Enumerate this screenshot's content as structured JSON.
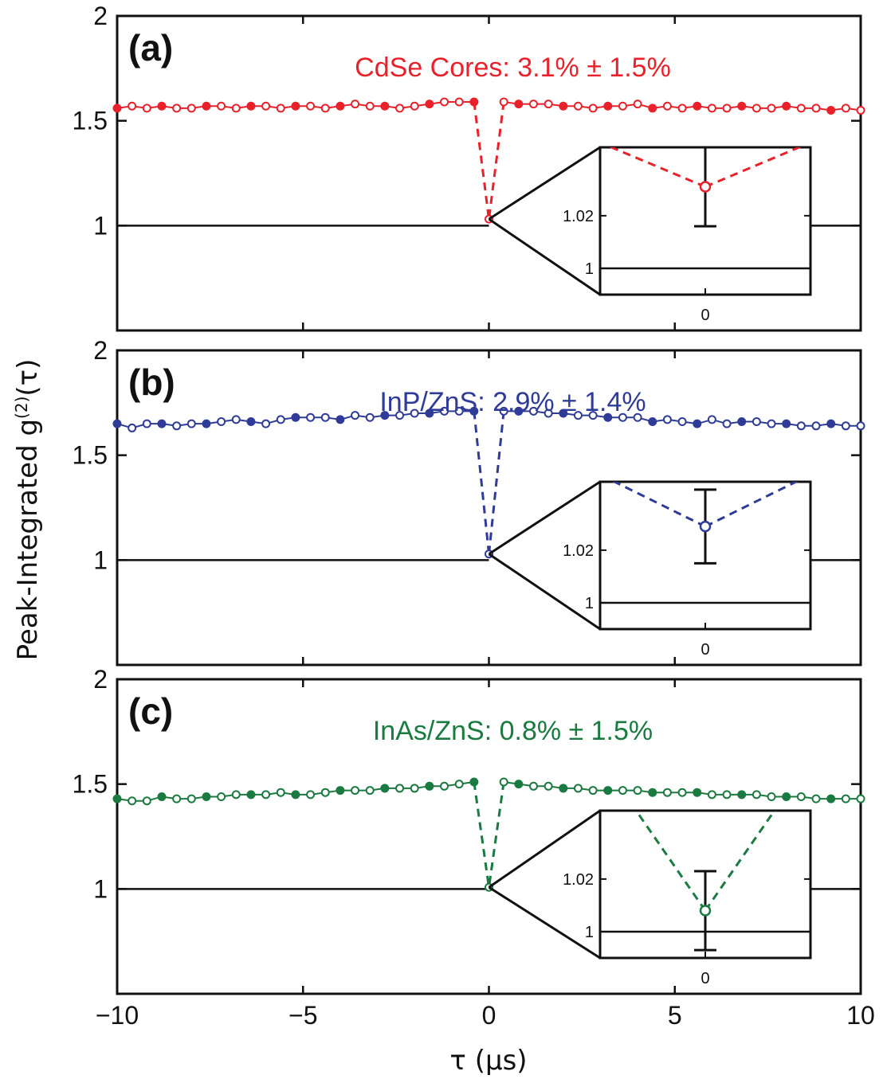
{
  "figure": {
    "ylabel_prefix": "Peak-Integrated g",
    "ylabel_sup": "(2)",
    "ylabel_suffix": "(τ)",
    "xlabel": "τ (μs)"
  },
  "chart_data": [
    {
      "type": "scatter",
      "panel_label": "(a)",
      "annotation": "CdSe Cores:  3.1% ± 1.5%",
      "color": "#e8212b",
      "xlim": [
        -10,
        10
      ],
      "ylim": [
        0.5,
        2
      ],
      "yticks": [
        "1",
        "1.5",
        "2"
      ],
      "xticks": [
        "−10",
        "−5",
        "0",
        "5",
        "10"
      ],
      "x": [
        -10,
        -9.6,
        -9.2,
        -8.8,
        -8.4,
        -8.0,
        -7.6,
        -7.2,
        -6.8,
        -6.4,
        -6.0,
        -5.6,
        -5.2,
        -4.8,
        -4.4,
        -4.0,
        -3.6,
        -3.2,
        -2.8,
        -2.4,
        -2.0,
        -1.6,
        -1.2,
        -0.8,
        -0.4,
        0,
        0.4,
        0.8,
        1.2,
        1.6,
        2.0,
        2.4,
        2.8,
        3.2,
        3.6,
        4.0,
        4.4,
        4.8,
        5.2,
        5.6,
        6.0,
        6.4,
        6.8,
        7.2,
        7.6,
        8.0,
        8.4,
        8.8,
        9.2,
        9.6,
        10
      ],
      "y": [
        1.56,
        1.57,
        1.56,
        1.57,
        1.56,
        1.56,
        1.57,
        1.57,
        1.56,
        1.57,
        1.57,
        1.56,
        1.57,
        1.57,
        1.56,
        1.57,
        1.58,
        1.57,
        1.57,
        1.56,
        1.57,
        1.58,
        1.59,
        1.59,
        1.59,
        1.031,
        1.59,
        1.58,
        1.58,
        1.58,
        1.57,
        1.57,
        1.56,
        1.57,
        1.57,
        1.58,
        1.56,
        1.57,
        1.56,
        1.57,
        1.56,
        1.56,
        1.57,
        1.56,
        1.56,
        1.57,
        1.56,
        1.56,
        1.55,
        1.56,
        1.55
      ],
      "inset": {
        "yticks": [
          "1",
          "1.02"
        ],
        "xtick": "0",
        "ylim": [
          0.99,
          1.046
        ],
        "value": 1.031,
        "err": 0.015
      }
    },
    {
      "type": "scatter",
      "panel_label": "(b)",
      "annotation": "InP/ZnS:  2.9% ± 1.4%",
      "color": "#2f3c97",
      "xlim": [
        -10,
        10
      ],
      "ylim": [
        0.5,
        2
      ],
      "yticks": [
        "1",
        "1.5",
        "2"
      ],
      "xticks": [
        "−10",
        "−5",
        "0",
        "5",
        "10"
      ],
      "x": [
        -10,
        -9.6,
        -9.2,
        -8.8,
        -8.4,
        -8.0,
        -7.6,
        -7.2,
        -6.8,
        -6.4,
        -6.0,
        -5.6,
        -5.2,
        -4.8,
        -4.4,
        -4.0,
        -3.6,
        -3.2,
        -2.8,
        -2.4,
        -2.0,
        -1.6,
        -1.2,
        -0.8,
        -0.4,
        0,
        0.4,
        0.8,
        1.2,
        1.6,
        2.0,
        2.4,
        2.8,
        3.2,
        3.6,
        4.0,
        4.4,
        4.8,
        5.2,
        5.6,
        6.0,
        6.4,
        6.8,
        7.2,
        7.6,
        8.0,
        8.4,
        8.8,
        9.2,
        9.6,
        10
      ],
      "y": [
        1.65,
        1.63,
        1.65,
        1.65,
        1.64,
        1.65,
        1.65,
        1.66,
        1.67,
        1.66,
        1.65,
        1.67,
        1.68,
        1.68,
        1.68,
        1.67,
        1.69,
        1.68,
        1.69,
        1.69,
        1.7,
        1.7,
        1.71,
        1.71,
        1.71,
        1.029,
        1.71,
        1.71,
        1.71,
        1.7,
        1.7,
        1.69,
        1.69,
        1.68,
        1.68,
        1.68,
        1.66,
        1.67,
        1.66,
        1.65,
        1.67,
        1.65,
        1.66,
        1.66,
        1.65,
        1.65,
        1.64,
        1.64,
        1.65,
        1.64,
        1.64
      ],
      "inset": {
        "yticks": [
          "1",
          "1.02"
        ],
        "xtick": "0",
        "ylim": [
          0.99,
          1.046
        ],
        "value": 1.029,
        "err": 0.014
      }
    },
    {
      "type": "scatter",
      "panel_label": "(c)",
      "annotation": "InAs/ZnS:  0.8% ± 1.5%",
      "color": "#1a7a40",
      "xlim": [
        -10,
        10
      ],
      "ylim": [
        0.5,
        2
      ],
      "yticks": [
        "1",
        "1.5",
        "2"
      ],
      "xticks": [
        "−10",
        "−5",
        "0",
        "5",
        "10"
      ],
      "x": [
        -10,
        -9.6,
        -9.2,
        -8.8,
        -8.4,
        -8.0,
        -7.6,
        -7.2,
        -6.8,
        -6.4,
        -6.0,
        -5.6,
        -5.2,
        -4.8,
        -4.4,
        -4.0,
        -3.6,
        -3.2,
        -2.8,
        -2.4,
        -2.0,
        -1.6,
        -1.2,
        -0.8,
        -0.4,
        0,
        0.4,
        0.8,
        1.2,
        1.6,
        2.0,
        2.4,
        2.8,
        3.2,
        3.6,
        4.0,
        4.4,
        4.8,
        5.2,
        5.6,
        6.0,
        6.4,
        6.8,
        7.2,
        7.6,
        8.0,
        8.4,
        8.8,
        9.2,
        9.6,
        10
      ],
      "y": [
        1.43,
        1.42,
        1.42,
        1.44,
        1.43,
        1.43,
        1.44,
        1.44,
        1.45,
        1.45,
        1.45,
        1.46,
        1.45,
        1.45,
        1.46,
        1.47,
        1.47,
        1.47,
        1.48,
        1.48,
        1.48,
        1.49,
        1.49,
        1.5,
        1.51,
        1.008,
        1.51,
        1.5,
        1.49,
        1.49,
        1.48,
        1.48,
        1.47,
        1.47,
        1.47,
        1.47,
        1.46,
        1.46,
        1.46,
        1.46,
        1.45,
        1.45,
        1.45,
        1.45,
        1.44,
        1.44,
        1.44,
        1.43,
        1.43,
        1.43,
        1.43
      ],
      "inset": {
        "yticks": [
          "1",
          "1.02"
        ],
        "xtick": "0",
        "ylim": [
          0.99,
          1.046
        ],
        "value": 1.008,
        "err": 0.015
      }
    }
  ]
}
